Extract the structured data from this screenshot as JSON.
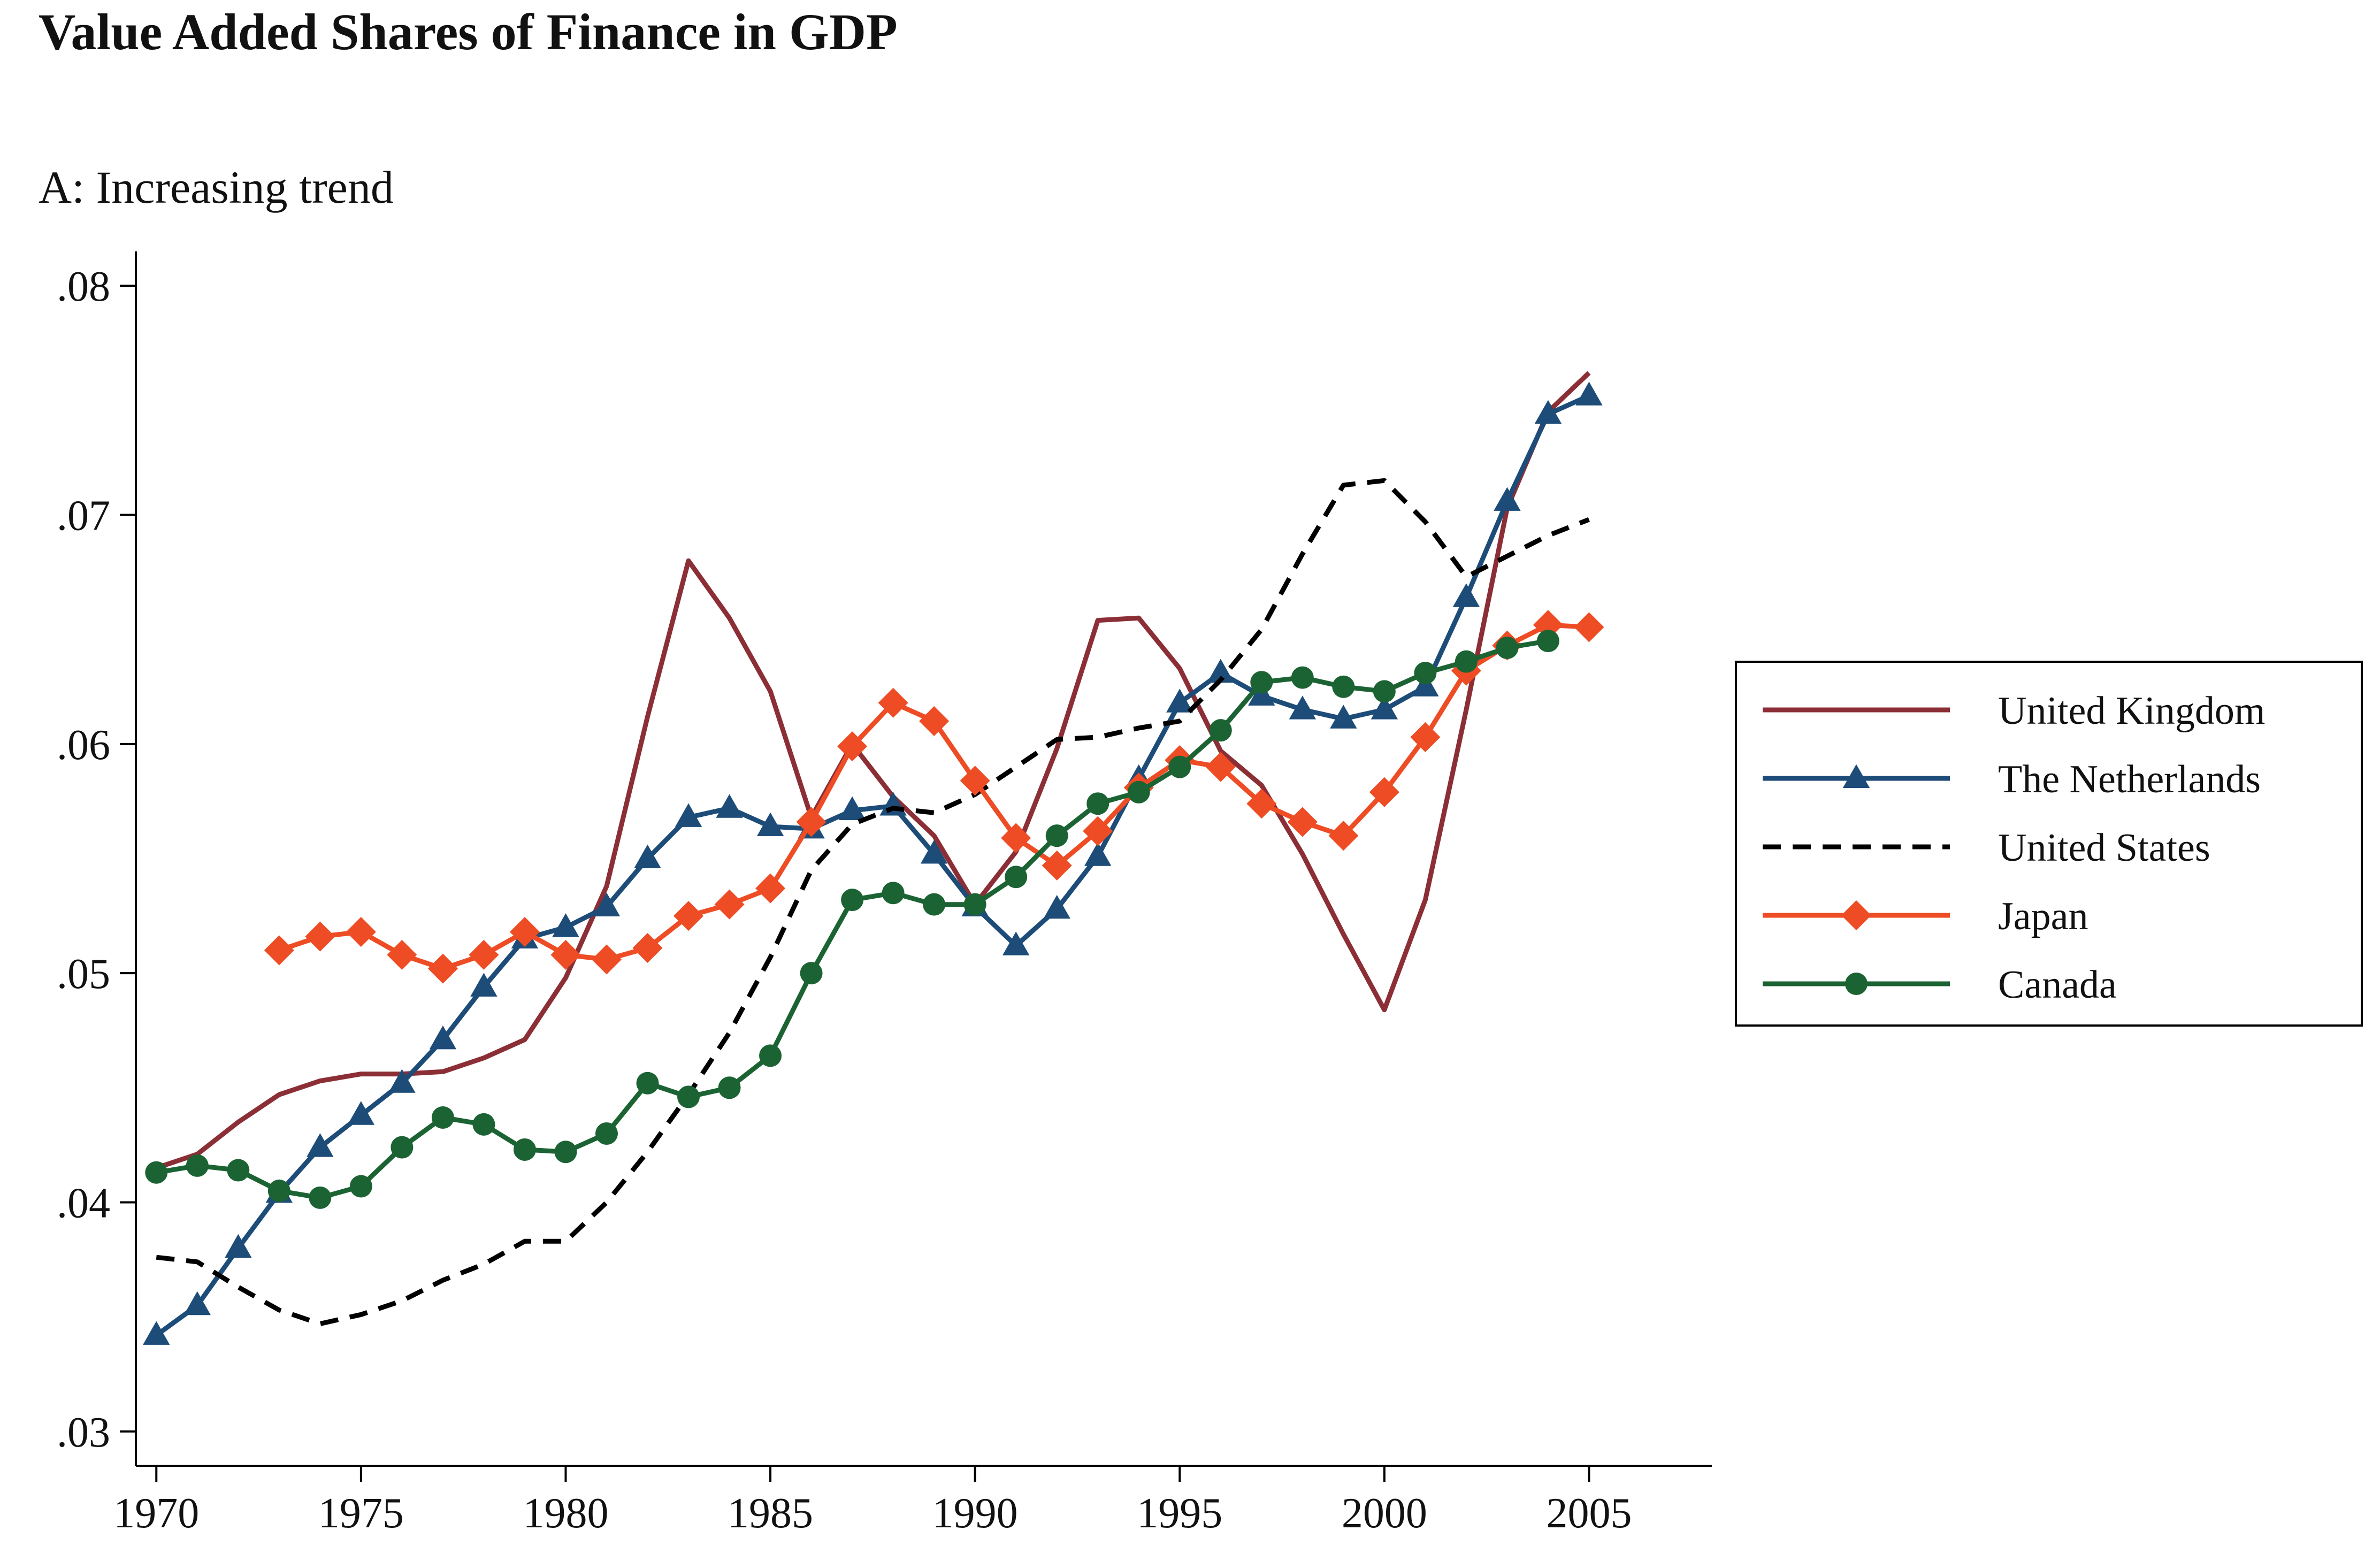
{
  "chart_data": {
    "type": "line",
    "title": "Value Added Shares of Finance in GDP",
    "subtitle": "A: Increasing trend",
    "xlabel": "",
    "ylabel": "",
    "xlim": [
      1969.5,
      2008
    ],
    "ylim": [
      0.0285,
      0.0815
    ],
    "x_ticks": [
      1970,
      1975,
      1980,
      1985,
      1990,
      1995,
      2000,
      2005
    ],
    "x_tick_labels": [
      "1970",
      "1975",
      "1980",
      "1985",
      "1990",
      "1995",
      "2000",
      "2005"
    ],
    "y_ticks": [
      0.03,
      0.04,
      0.05,
      0.06,
      0.07,
      0.08
    ],
    "y_tick_labels": [
      ".03",
      ".04",
      ".05",
      ".06",
      ".07",
      ".08"
    ],
    "grid": false,
    "legend_position": "right",
    "series": [
      {
        "name": "United Kingdom",
        "color": "#8B2E35",
        "dash": "solid",
        "marker": "none",
        "x": [
          1970,
          1971,
          1972,
          1973,
          1974,
          1975,
          1976,
          1977,
          1978,
          1979,
          1980,
          1981,
          1982,
          1983,
          1984,
          1985,
          1986,
          1987,
          1988,
          1989,
          1990,
          1991,
          1992,
          1993,
          1994,
          1995,
          1996,
          1997,
          1998,
          1999,
          2000,
          2001,
          2002,
          2003,
          2004,
          2005
        ],
        "y": [
          0.0415,
          0.0421,
          0.0435,
          0.0447,
          0.0453,
          0.0456,
          0.0456,
          0.0457,
          0.0463,
          0.0471,
          0.0498,
          0.0538,
          0.0612,
          0.068,
          0.0655,
          0.0623,
          0.0568,
          0.06,
          0.0577,
          0.056,
          0.053,
          0.0553,
          0.0598,
          0.0654,
          0.0655,
          0.0633,
          0.0597,
          0.0582,
          0.0552,
          0.0517,
          0.0484,
          0.0532,
          0.0615,
          0.0703,
          0.0745,
          0.0762
        ]
      },
      {
        "name": "The Netherlands",
        "color": "#1D4C78",
        "dash": "solid",
        "marker": "triangle",
        "x": [
          1970,
          1971,
          1972,
          1973,
          1974,
          1975,
          1976,
          1977,
          1978,
          1979,
          1980,
          1981,
          1982,
          1983,
          1984,
          1985,
          1986,
          1987,
          1988,
          1989,
          1990,
          1991,
          1992,
          1993,
          1994,
          1995,
          1996,
          1997,
          1998,
          1999,
          2000,
          2001,
          2002,
          2003,
          2004,
          2005
        ],
        "y": [
          0.0342,
          0.0355,
          0.038,
          0.0404,
          0.0424,
          0.0438,
          0.0452,
          0.0471,
          0.0494,
          0.0515,
          0.052,
          0.0529,
          0.055,
          0.0568,
          0.0572,
          0.0564,
          0.0563,
          0.0571,
          0.0573,
          0.0552,
          0.0529,
          0.0512,
          0.0528,
          0.0551,
          0.0585,
          0.0618,
          0.0631,
          0.0621,
          0.0615,
          0.0611,
          0.0615,
          0.0625,
          0.0664,
          0.0706,
          0.0744,
          0.0752
        ]
      },
      {
        "name": "United States",
        "color": "#000000",
        "dash": "dashed",
        "marker": "none",
        "x": [
          1970,
          1971,
          1972,
          1973,
          1974,
          1975,
          1976,
          1977,
          1978,
          1979,
          1980,
          1981,
          1982,
          1983,
          1984,
          1985,
          1986,
          1987,
          1988,
          1989,
          1990,
          1991,
          1992,
          1993,
          1994,
          1995,
          1996,
          1997,
          1998,
          1999,
          2000,
          2001,
          2002,
          2003,
          2004,
          2005
        ],
        "y": [
          0.0376,
          0.0374,
          0.0363,
          0.0353,
          0.0347,
          0.0351,
          0.0357,
          0.0366,
          0.0373,
          0.0383,
          0.0383,
          0.04,
          0.0422,
          0.0447,
          0.0474,
          0.0507,
          0.0545,
          0.0565,
          0.0572,
          0.057,
          0.0578,
          0.059,
          0.0602,
          0.0603,
          0.0607,
          0.061,
          0.0628,
          0.065,
          0.0683,
          0.0713,
          0.0715,
          0.0697,
          0.0673,
          0.0682,
          0.0691,
          0.0698
        ]
      },
      {
        "name": "Japan",
        "color": "#EE4C24",
        "dash": "solid",
        "marker": "diamond",
        "x": [
          1973,
          1974,
          1975,
          1976,
          1977,
          1978,
          1979,
          1980,
          1981,
          1982,
          1983,
          1984,
          1985,
          1986,
          1987,
          1988,
          1989,
          1990,
          1991,
          1992,
          1993,
          1994,
          1995,
          1996,
          1997,
          1998,
          1999,
          2000,
          2001,
          2002,
          2003,
          2004,
          2005
        ],
        "y": [
          0.051,
          0.0516,
          0.0518,
          0.0508,
          0.0502,
          0.0508,
          0.0518,
          0.0508,
          0.0506,
          0.0511,
          0.0525,
          0.053,
          0.0537,
          0.0566,
          0.0599,
          0.0618,
          0.061,
          0.0584,
          0.0559,
          0.0547,
          0.0562,
          0.0581,
          0.0593,
          0.059,
          0.0574,
          0.0566,
          0.056,
          0.0579,
          0.0603,
          0.0632,
          0.0643,
          0.0652,
          0.0651
        ]
      },
      {
        "name": "Canada",
        "color": "#1C6334",
        "dash": "solid",
        "marker": "circle",
        "x": [
          1970,
          1971,
          1972,
          1973,
          1974,
          1975,
          1976,
          1977,
          1978,
          1979,
          1980,
          1981,
          1982,
          1983,
          1984,
          1985,
          1986,
          1987,
          1988,
          1989,
          1990,
          1991,
          1992,
          1993,
          1994,
          1995,
          1996,
          1997,
          1998,
          1999,
          2000,
          2001,
          2002,
          2003,
          2004
        ],
        "y": [
          0.0413,
          0.0416,
          0.0414,
          0.0405,
          0.0402,
          0.0407,
          0.0424,
          0.0437,
          0.0434,
          0.0423,
          0.0422,
          0.043,
          0.0452,
          0.0446,
          0.045,
          0.0464,
          0.05,
          0.0532,
          0.0535,
          0.053,
          0.053,
          0.0542,
          0.056,
          0.0574,
          0.0579,
          0.059,
          0.0606,
          0.0627,
          0.0629,
          0.0625,
          0.0623,
          0.0631,
          0.0636,
          0.0642,
          0.0645
        ]
      }
    ]
  }
}
